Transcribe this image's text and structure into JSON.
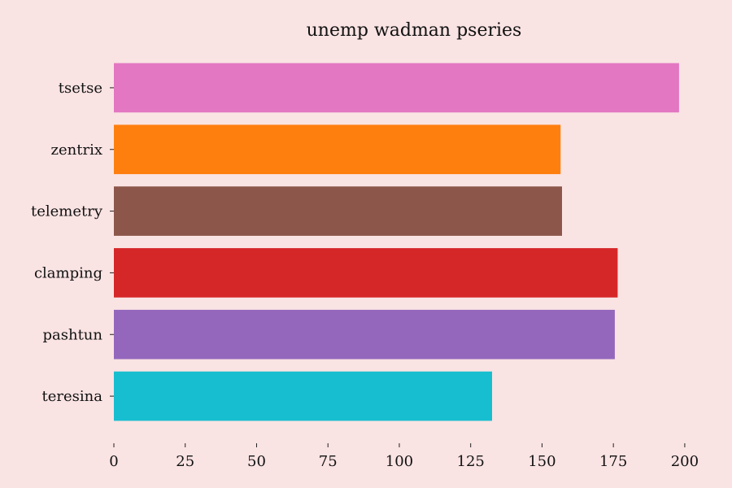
{
  "chart_data": {
    "type": "bar",
    "orientation": "horizontal",
    "title": "unemp wadman pseries",
    "xlabel": "",
    "ylabel": "",
    "categories": [
      "tsetse",
      "zentrix",
      "telemetry",
      "clamping",
      "pashtun",
      "teresina"
    ],
    "values": [
      198,
      156.5,
      157,
      176.5,
      175.5,
      132.5
    ],
    "colors": [
      "#e377c2",
      "#ff7f0e",
      "#8c564b",
      "#d62728",
      "#9467bd",
      "#17becf"
    ],
    "xlim": [
      0,
      210
    ],
    "xticks": [
      0,
      25,
      50,
      75,
      100,
      125,
      150,
      175,
      200
    ],
    "grid": false,
    "legend": "none"
  }
}
